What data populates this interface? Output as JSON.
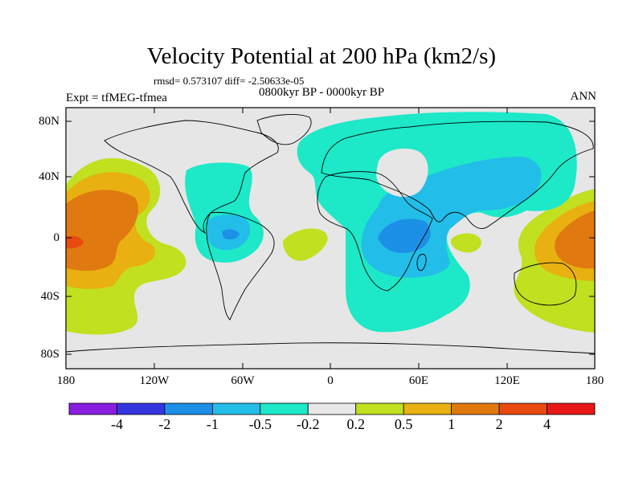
{
  "title": "Velocity Potential at 200 hPa (km2/s)",
  "stats": "rmsd= 0.573107 diff= -2.50633e-05",
  "left_label": "Expt = tfMEG-tfmea",
  "center_label": "0800kyr BP - 0000kyr BP",
  "right_label": "ANN",
  "y_ticks": [
    "80N",
    "40N",
    "0",
    "40S",
    "80S"
  ],
  "x_ticks": [
    "180",
    "120W",
    "60W",
    "0",
    "60E",
    "120E",
    "180"
  ],
  "colorbar": {
    "colors": [
      "#8a1ee0",
      "#3535e0",
      "#1c8fe6",
      "#22bde8",
      "#1de8c8",
      "#e8e8e8",
      "#c0e020",
      "#e8b010",
      "#e07a10",
      "#e84a10",
      "#e81818"
    ],
    "labels": [
      "-4",
      "-2",
      "-1",
      "-0.5",
      "-0.2",
      "0.2",
      "0.5",
      "1",
      "2",
      "4"
    ]
  },
  "field_colors": {
    "background": "#e6e6e6",
    "neg_weak": "#1de8c8",
    "neg_mid": "#22bde8",
    "neg_strong": "#1c8fe6",
    "pos_weak": "#c0e020",
    "pos_mid": "#e8b010",
    "pos_strong": "#e07a10",
    "pos_max": "#e84a10",
    "coast": "#000000"
  }
}
